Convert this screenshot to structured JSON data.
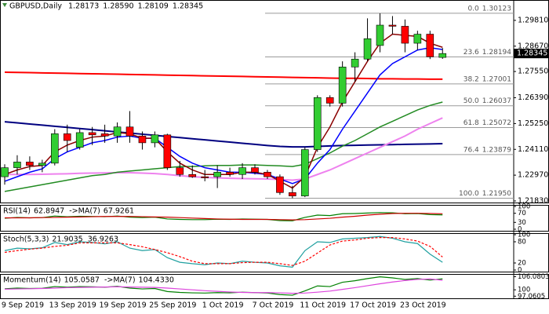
{
  "chart_data": [
    {
      "type": "candlestick",
      "title": "GBPUSD,Daily",
      "categories": [
        null,
        "9 Sep 2019",
        null,
        null,
        null,
        "13 Sep 2019",
        null,
        null,
        null,
        "19 Sep 2019",
        null,
        null,
        null,
        "25 Sep 2019",
        null,
        null,
        null,
        "1 Oct 2019",
        null,
        null,
        null,
        "7 Oct 2019",
        null,
        null,
        null,
        "11 Oct 2019",
        null,
        null,
        null,
        "17 Oct 2019",
        null,
        null,
        null,
        "23 Oct 2019",
        null,
        null
      ],
      "open": [
        1.229,
        1.233,
        1.2355,
        1.234,
        1.235,
        1.248,
        1.242,
        1.2485,
        1.248,
        1.247,
        1.251,
        1.247,
        1.244,
        1.2475,
        1.233,
        1.23,
        1.229,
        1.229,
        1.231,
        1.23,
        1.233,
        1.231,
        1.229,
        1.222,
        1.2205,
        1.241,
        1.264,
        1.2615,
        1.2775,
        1.281,
        1.287,
        1.296,
        1.2955,
        1.288,
        1.292,
        1.28173
      ],
      "high": [
        1.2345,
        1.2385,
        1.238,
        1.2365,
        1.25,
        1.252,
        1.25,
        1.251,
        1.252,
        1.253,
        1.258,
        1.249,
        1.249,
        1.248,
        1.236,
        1.234,
        1.232,
        1.234,
        1.233,
        1.235,
        1.2345,
        1.232,
        1.23,
        1.225,
        1.242,
        1.265,
        1.265,
        1.28,
        1.284,
        1.299,
        1.3012,
        1.3,
        1.2985,
        1.2935,
        1.2935,
        1.2859
      ],
      "low": [
        1.2255,
        1.23,
        1.232,
        1.231,
        1.234,
        1.24,
        1.241,
        1.243,
        1.244,
        1.244,
        1.244,
        1.241,
        1.242,
        1.232,
        1.229,
        1.2285,
        1.227,
        1.224,
        1.229,
        1.228,
        1.23,
        1.228,
        1.221,
        1.2195,
        1.22,
        1.24,
        1.26,
        1.26,
        1.271,
        1.28,
        1.284,
        1.292,
        1.284,
        1.285,
        1.281,
        1.28109
      ],
      "close": [
        1.233,
        1.2355,
        1.234,
        1.235,
        1.248,
        1.245,
        1.2485,
        1.2475,
        1.247,
        1.251,
        1.247,
        1.244,
        1.2475,
        1.233,
        1.23,
        1.229,
        1.2285,
        1.231,
        1.23,
        1.233,
        1.231,
        1.229,
        1.222,
        1.2205,
        1.241,
        1.264,
        1.2615,
        1.2775,
        1.281,
        1.29,
        1.296,
        1.2955,
        1.288,
        1.292,
        1.282,
        1.28345
      ],
      "open_labels": [
        null,
        null,
        null,
        null,
        null,
        null,
        null,
        null,
        null,
        null,
        null,
        null,
        null,
        null,
        null,
        null,
        null,
        null,
        null,
        null,
        null,
        null,
        null,
        null,
        null,
        null,
        null,
        null,
        null,
        null,
        null,
        null,
        null,
        null,
        null,
        "1.28173"
      ],
      "high_labels": [
        null,
        null,
        null,
        null,
        null,
        null,
        null,
        null,
        null,
        null,
        null,
        null,
        null,
        null,
        null,
        null,
        null,
        null,
        null,
        null,
        null,
        null,
        null,
        null,
        null,
        null,
        null,
        null,
        null,
        null,
        null,
        null,
        null,
        null,
        null,
        "1.28590"
      ],
      "low_labels": [
        null,
        null,
        null,
        null,
        null,
        null,
        null,
        null,
        null,
        null,
        null,
        null,
        null,
        null,
        null,
        null,
        null,
        null,
        null,
        null,
        null,
        null,
        null,
        null,
        null,
        null,
        null,
        null,
        null,
        null,
        null,
        null,
        null,
        null,
        null,
        "1.28109"
      ],
      "close_labels": [
        null,
        null,
        null,
        null,
        null,
        null,
        null,
        null,
        null,
        null,
        null,
        null,
        null,
        null,
        null,
        null,
        null,
        null,
        null,
        null,
        null,
        null,
        null,
        null,
        null,
        null,
        null,
        null,
        null,
        null,
        null,
        null,
        null,
        null,
        null,
        "1.28345"
      ],
      "up_color": "#32cd32",
      "down_color": "#ff0000",
      "series": [
        {
          "color": "#ff0000",
          "width": 2,
          "values": [
            1.2752,
            1.2751,
            1.275,
            1.2749,
            1.2748,
            1.2747,
            1.2746,
            1.2745,
            1.2744,
            1.2743,
            1.2742,
            1.2741,
            1.274,
            1.2739,
            1.2738,
            1.2737,
            1.2736,
            1.2735,
            1.2734,
            1.2733,
            1.2732,
            1.2731,
            1.273,
            1.2729,
            1.2728,
            1.2727,
            1.2726,
            1.2725,
            1.2725,
            1.2724,
            1.2723,
            1.2723,
            1.2722,
            1.2722,
            1.2721,
            1.2721
          ]
        },
        {
          "color": "#000080",
          "width": 2,
          "values": [
            1.2533,
            1.2528,
            1.2523,
            1.2518,
            1.2513,
            1.2508,
            1.2503,
            1.2498,
            1.2493,
            1.2488,
            1.2483,
            1.2478,
            1.2473,
            1.2468,
            1.2463,
            1.2458,
            1.2453,
            1.2448,
            1.2443,
            1.2438,
            1.2433,
            1.2428,
            1.2424,
            1.2422,
            1.2422,
            1.2424,
            1.2426,
            1.2428,
            1.2429,
            1.243,
            1.2431,
            1.2432,
            1.2433,
            1.2434,
            1.2435,
            1.2436
          ]
        },
        {
          "color": "#ee82ee",
          "width": 2,
          "values": [
            1.23,
            1.23,
            1.23,
            1.2301,
            1.2302,
            1.2303,
            1.2305,
            1.2306,
            1.2307,
            1.2308,
            1.2308,
            1.2306,
            1.2304,
            1.23,
            1.2295,
            1.229,
            1.2287,
            1.2285,
            1.2283,
            1.2282,
            1.2281,
            1.228,
            1.2278,
            1.2275,
            1.228,
            1.23,
            1.232,
            1.2345,
            1.237,
            1.2395,
            1.242,
            1.2445,
            1.247,
            1.25,
            1.2525,
            1.255
          ]
        },
        {
          "color": "#228b22",
          "width": 1.5,
          "values": [
            1.2225,
            1.2235,
            1.2245,
            1.2255,
            1.2265,
            1.2275,
            1.2285,
            1.2295,
            1.23,
            1.231,
            1.2315,
            1.232,
            1.2325,
            1.233,
            1.2335,
            1.2335,
            1.2338,
            1.234,
            1.234,
            1.2342,
            1.2342,
            1.234,
            1.2338,
            1.2335,
            1.2345,
            1.237,
            1.2395,
            1.2425,
            1.245,
            1.248,
            1.251,
            1.2535,
            1.256,
            1.2585,
            1.2605,
            1.262
          ]
        },
        {
          "color": "#0000ff",
          "width": 1.5,
          "values": [
            1.227,
            1.229,
            1.231,
            1.2325,
            1.237,
            1.24,
            1.242,
            1.244,
            1.245,
            1.2465,
            1.247,
            1.246,
            1.246,
            1.242,
            1.238,
            1.235,
            1.233,
            1.232,
            1.231,
            1.231,
            1.2305,
            1.23,
            1.228,
            1.226,
            1.228,
            1.235,
            1.241,
            1.25,
            1.258,
            1.266,
            1.274,
            1.279,
            1.282,
            1.285,
            1.286,
            1.2852
          ]
        },
        {
          "color": "#8b0000",
          "width": 1.5,
          "values": [
            1.23,
            1.232,
            1.2335,
            1.234,
            1.24,
            1.243,
            1.245,
            1.2465,
            1.247,
            1.2485,
            1.248,
            1.246,
            1.246,
            1.24,
            1.235,
            1.232,
            1.23,
            1.23,
            1.23,
            1.231,
            1.231,
            1.23,
            1.227,
            1.224,
            1.229,
            1.242,
            1.251,
            1.262,
            1.271,
            1.28,
            1.288,
            1.292,
            1.2915,
            1.291,
            1.288,
            1.2862
          ]
        }
      ],
      "ylim": [
        1.2176,
        1.3071
      ],
      "yticks": [
        {
          "value": 1.2981,
          "label": "1.29810"
        },
        {
          "value": 1.2867,
          "label": "1.28670"
        },
        {
          "value": 1.2755,
          "label": "1.27550"
        },
        {
          "value": 1.2639,
          "label": "1.26390"
        },
        {
          "value": 1.2525,
          "label": "1.25250"
        },
        {
          "value": 1.2411,
          "label": "1.24110"
        },
        {
          "value": 1.2297,
          "label": "1.22970"
        },
        {
          "value": 1.2183,
          "label": "1.21830"
        }
      ],
      "fib_levels": [
        {
          "ratio": "0.0",
          "price": 1.30123
        },
        {
          "ratio": "23.6",
          "price": 1.28194
        },
        {
          "ratio": "38.2",
          "price": 1.27001
        },
        {
          "ratio": "50.0",
          "price": 1.26037
        },
        {
          "ratio": "61.8",
          "price": 1.25072
        },
        {
          "ratio": "76.4",
          "price": 1.23879
        },
        {
          "ratio": "100.0",
          "price": {
            "value": 1.2195,
            "label": "1.21950"
          }
        }
      ]
    },
    {
      "type": "line",
      "series": [
        {
          "name": "RSI(14)",
          "color": "#008000",
          "values": [
            48,
            52,
            50,
            51,
            58,
            55,
            57,
            56,
            55,
            58,
            53,
            51,
            53,
            45,
            43,
            42,
            42,
            44,
            43,
            45,
            44,
            43,
            38,
            37,
            52,
            62,
            60,
            68,
            69,
            71,
            73,
            72,
            68,
            69,
            64,
            62.8947
          ]
        },
        {
          "name": "->MA(7)",
          "color": "#cc0000",
          "values": [
            50,
            50,
            50,
            51,
            52,
            53,
            54,
            55,
            56,
            56,
            56,
            55,
            54,
            53,
            51,
            49,
            47,
            45,
            44,
            43,
            43,
            43,
            42,
            41,
            42,
            45,
            48,
            53,
            57,
            62,
            66,
            69,
            70,
            70,
            69,
            67.9261
          ]
        }
      ],
      "ylim": [
        0,
        100
      ],
      "yticks": [
        0,
        30,
        70,
        100
      ]
    },
    {
      "type": "line",
      "series": [
        {
          "name": "Stoch(5,3,3)",
          "color": "#20a0a0",
          "values": [
            55,
            62,
            60,
            63,
            78,
            72,
            80,
            78,
            74,
            80,
            62,
            55,
            58,
            35,
            22,
            18,
            15,
            20,
            18,
            25,
            22,
            20,
            12,
            8,
            55,
            80,
            78,
            88,
            90,
            92,
            95,
            90,
            80,
            75,
            45,
            21.9035
          ]
        },
        {
          "color": "#ff0000",
          "dashed": true,
          "values": [
            50,
            55,
            59,
            62,
            67,
            70,
            77,
            77,
            77,
            77,
            72,
            66,
            58,
            49,
            38,
            25,
            18,
            18,
            18,
            21,
            22,
            22,
            18,
            13,
            25,
            48,
            71,
            82,
            85,
            90,
            92,
            92,
            88,
            82,
            67,
            36.9263
          ]
        }
      ],
      "ylim": [
        0,
        100
      ],
      "yticks": [
        0,
        20,
        80,
        100
      ]
    },
    {
      "type": "line",
      "series": [
        {
          "name": "Momentum(14)",
          "color": "#008000",
          "values": [
            100.5,
            100.8,
            100.6,
            100.7,
            101.5,
            101.2,
            101.5,
            101.4,
            101.2,
            101.6,
            100.8,
            100.4,
            100.6,
            99.2,
            98.8,
            98.6,
            98.5,
            98.7,
            98.6,
            98.9,
            98.7,
            98.5,
            97.8,
            97.5,
            99.5,
            101.8,
            101.5,
            103.5,
            104.2,
            105.2,
            106,
            105.5,
            104.8,
            105.2,
            104.5,
            105.0587
          ]
        },
        {
          "name": "->MA(7)",
          "color": "#dd44dd",
          "values": [
            100.3,
            100.4,
            100.5,
            100.6,
            100.8,
            101,
            101.1,
            101.2,
            101.3,
            101.4,
            101.3,
            101.2,
            101.1,
            100.8,
            100.4,
            100,
            99.6,
            99.3,
            99,
            98.8,
            98.7,
            98.7,
            98.6,
            98.4,
            98.5,
            98.9,
            99.4,
            100.2,
            101,
            101.9,
            102.8,
            103.6,
            104.3,
            104.8,
            105,
            104.433
          ],
          "value_labels": [
            null,
            null,
            null,
            null,
            null,
            null,
            null,
            null,
            null,
            null,
            null,
            null,
            null,
            null,
            null,
            null,
            null,
            null,
            null,
            null,
            null,
            null,
            null,
            null,
            null,
            null,
            null,
            null,
            null,
            null,
            null,
            null,
            null,
            null,
            null,
            "104.4330"
          ]
        }
      ],
      "ylim": [
        96.8,
        106.6
      ],
      "yticks": [
        97.0605,
        100,
        106.0803
      ]
    }
  ]
}
